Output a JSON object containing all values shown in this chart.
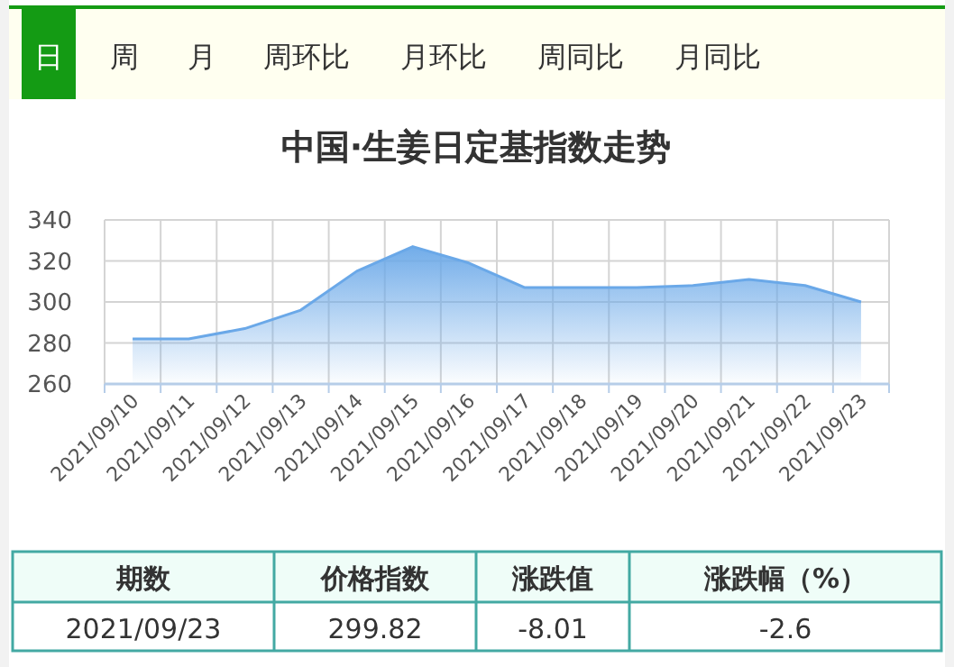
{
  "chart_data": {
    "type": "area",
    "title": "中国·生姜日定基指数走势",
    "categories": [
      "2021/09/10",
      "2021/09/11",
      "2021/09/12",
      "2021/09/13",
      "2021/09/14",
      "2021/09/15",
      "2021/09/16",
      "2021/09/17",
      "2021/09/18",
      "2021/09/19",
      "2021/09/20",
      "2021/09/21",
      "2021/09/22",
      "2021/09/23"
    ],
    "series": [
      {
        "color": "#6aa8e8",
        "values": [
          282,
          282,
          287,
          296,
          315,
          327,
          319,
          307,
          307,
          307,
          308,
          311,
          308,
          300
        ]
      }
    ],
    "ylim": [
      260,
      340
    ],
    "yticks": [
      260,
      280,
      300,
      320,
      340
    ],
    "grid": true,
    "annotations": [
      "日",
      "周",
      "月",
      "周环比",
      "月环比",
      "周同比",
      "月同比",
      "期数",
      "价格指数",
      "涨跌值",
      "涨跌幅（%）",
      "2021/09/23",
      "299.82",
      "-8.01",
      "-2.6"
    ]
  }
}
